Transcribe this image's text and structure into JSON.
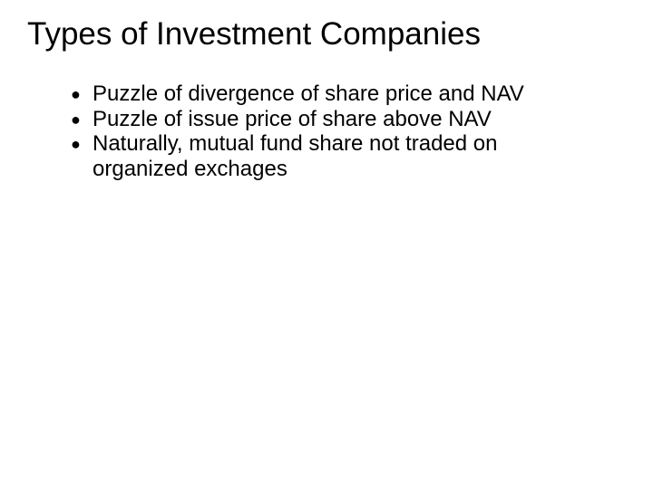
{
  "slide": {
    "title": "Types of Investment Companies",
    "title_fontsize": 35,
    "title_color": "#000000",
    "background_color": "#ffffff",
    "bullets": [
      {
        "text": "Puzzle of divergence of share price and NAV"
      },
      {
        "text": "Puzzle of issue price of share above NAV"
      },
      {
        "text": "Naturally, mutual fund share not traded on organized exchages"
      }
    ],
    "bullet_fontsize": 24,
    "bullet_color": "#000000",
    "bullet_marker": "filled-circle"
  }
}
